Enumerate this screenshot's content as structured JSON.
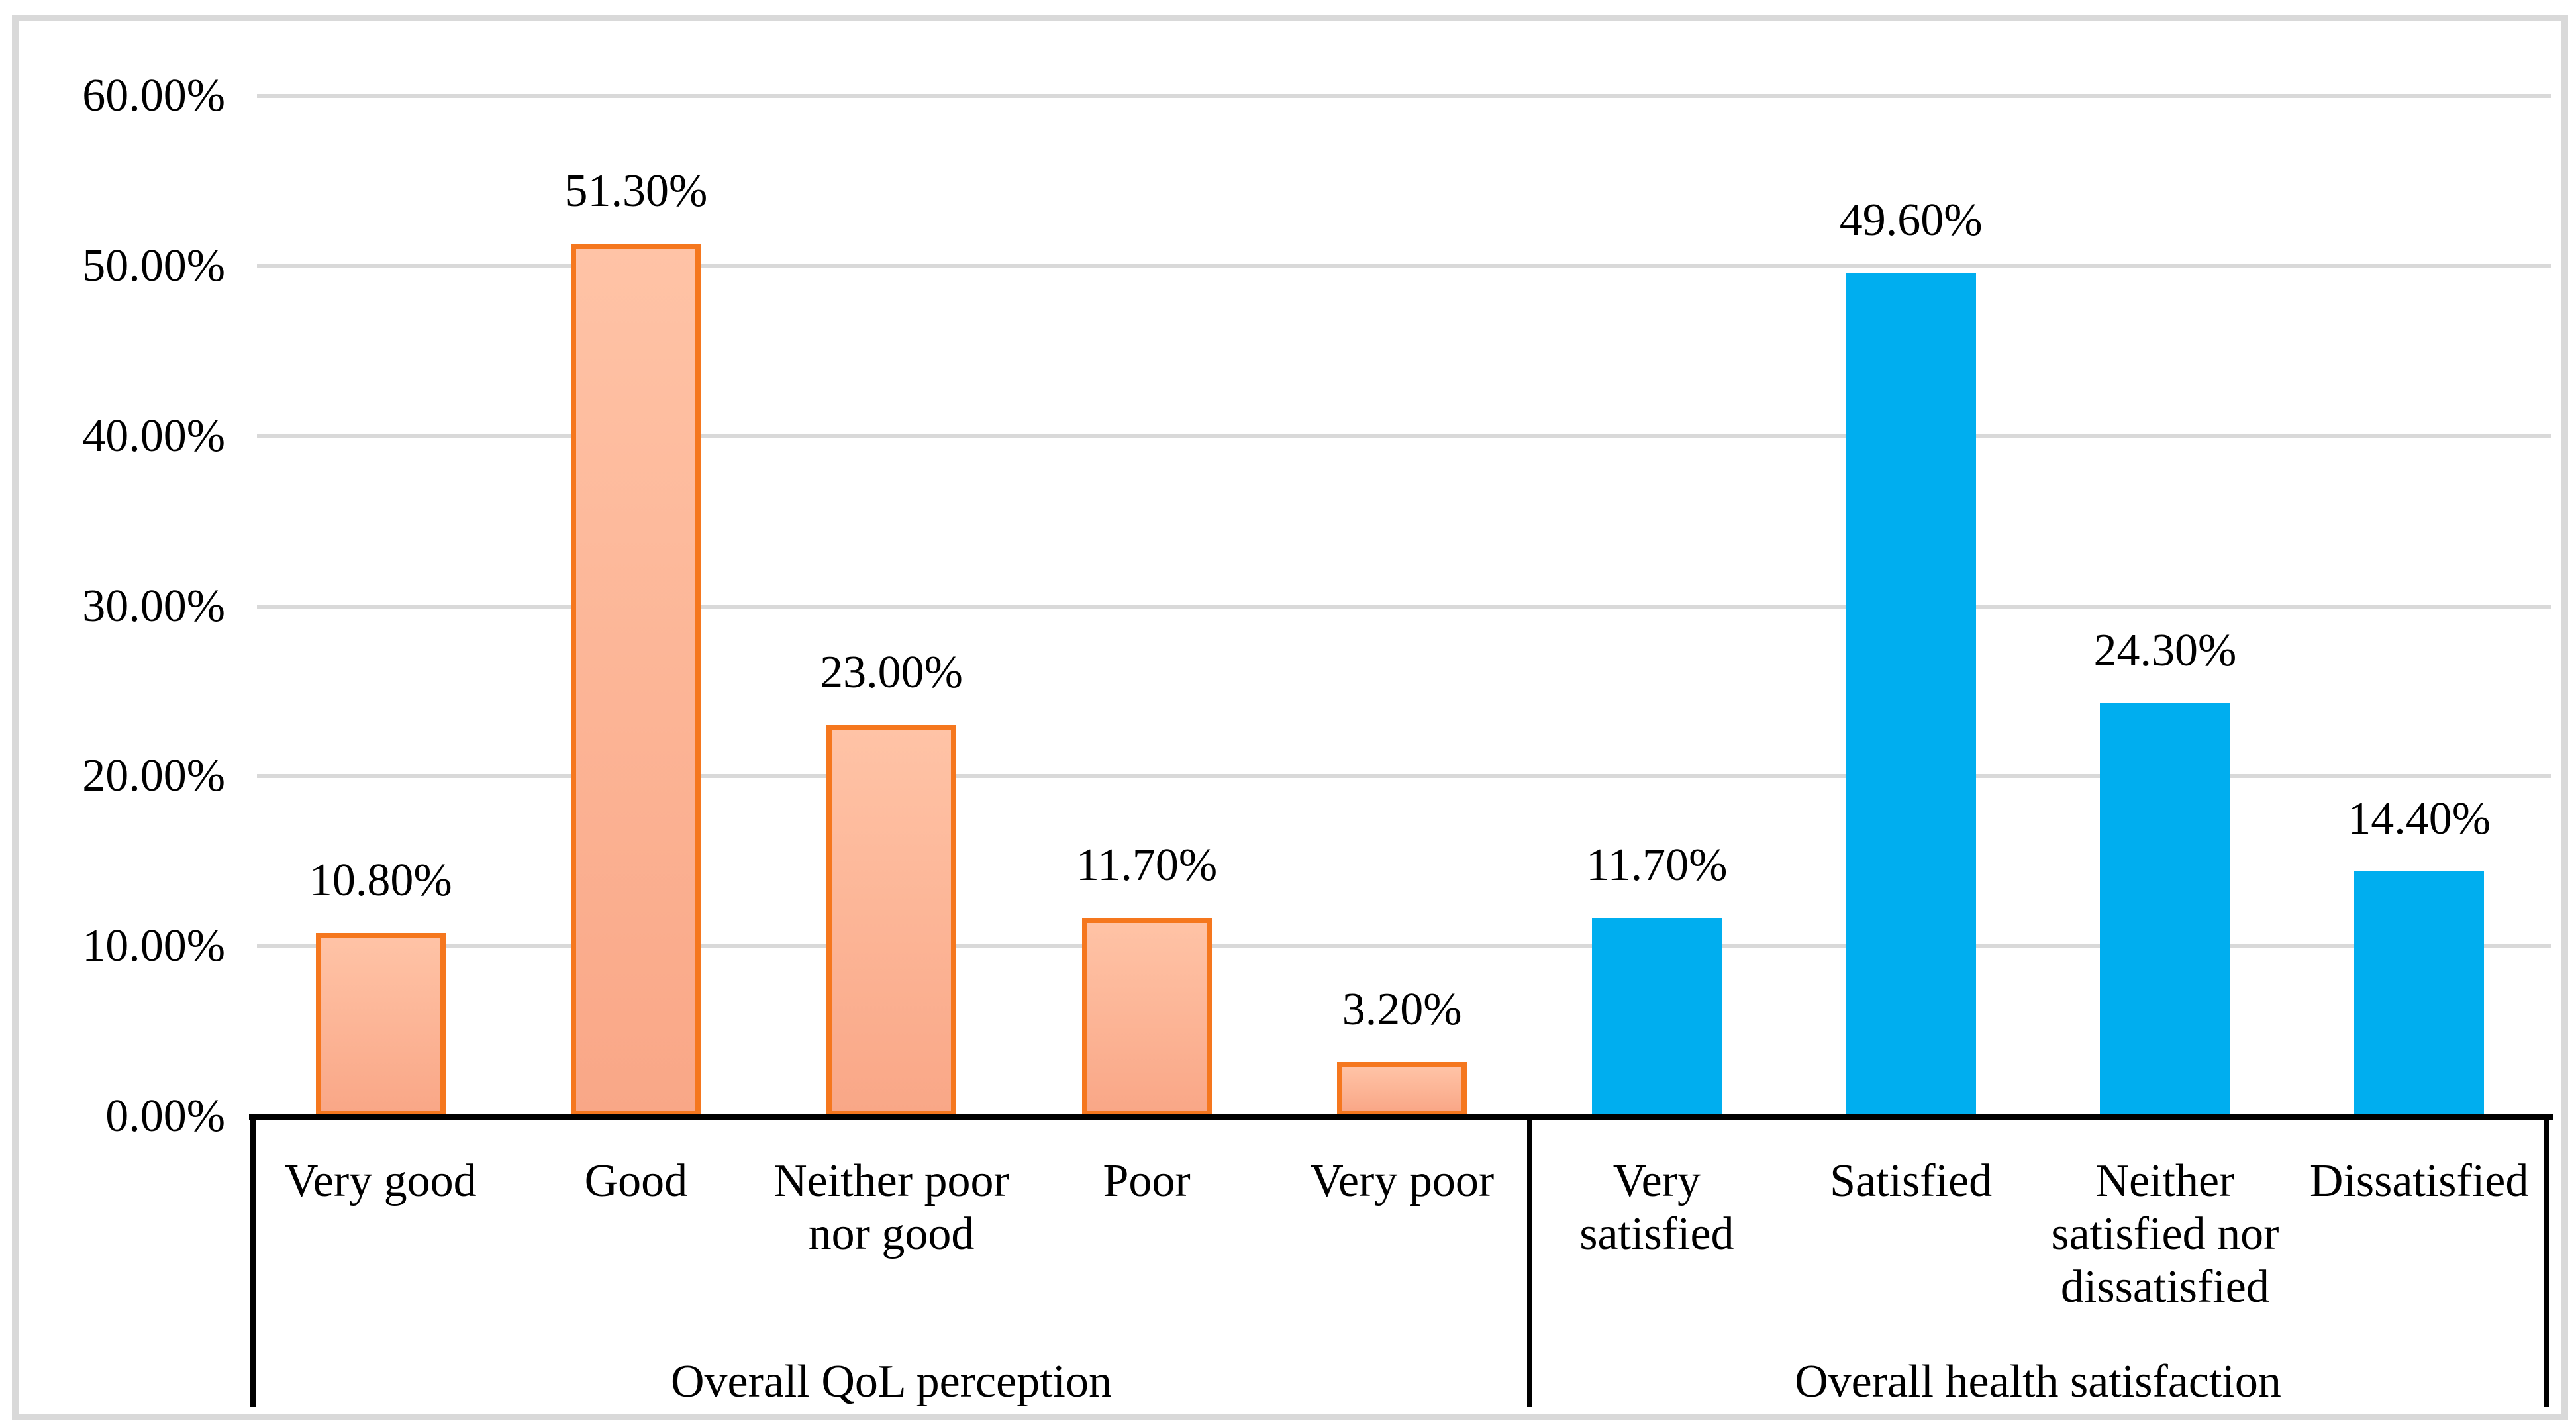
{
  "figure": {
    "description": "Column chart of overall QoL perception and overall health satisfaction percentages"
  },
  "chart_data": {
    "type": "bar",
    "title": "",
    "xlabel": "",
    "ylabel": "",
    "ylim": [
      0,
      60
    ],
    "y_tick_step": 10,
    "y_tick_labels": [
      "0.00%",
      "10.00%",
      "20.00%",
      "30.00%",
      "40.00%",
      "50.00%",
      "60.00%"
    ],
    "grid": true,
    "legend": "none",
    "value_label_format": "0.00%",
    "groups": [
      {
        "title": "Overall QoL perception",
        "series_color": "orange",
        "categories": [
          "Very good",
          "Good",
          "Neither poor\nnor good",
          "Poor",
          "Very poor"
        ],
        "values": [
          10.8,
          51.3,
          23.0,
          11.7,
          3.2
        ],
        "labels": [
          "10.80%",
          "51.30%",
          "23.00%",
          "11.70%",
          "3.20%"
        ]
      },
      {
        "title": "Overall health satisfaction",
        "series_color": "blue",
        "categories": [
          "Very\nsatisfied",
          "Satisfied",
          "Neither\nsatisfied nor\ndissatisfied",
          "Dissatisfied"
        ],
        "values": [
          11.7,
          49.6,
          24.3,
          14.4
        ],
        "labels": [
          "11.70%",
          "49.60%",
          "24.30%",
          "14.40%"
        ]
      }
    ]
  },
  "colors": {
    "orange_fill_top": "#FFC3A6",
    "orange_fill_bottom": "#F9A787",
    "orange_border": "#F5771E",
    "blue_fill": "#00AEEF",
    "gridline": "#D9D9D9",
    "frame": "#D9D9D9",
    "axis_line": "#000000",
    "text": "#000000"
  }
}
